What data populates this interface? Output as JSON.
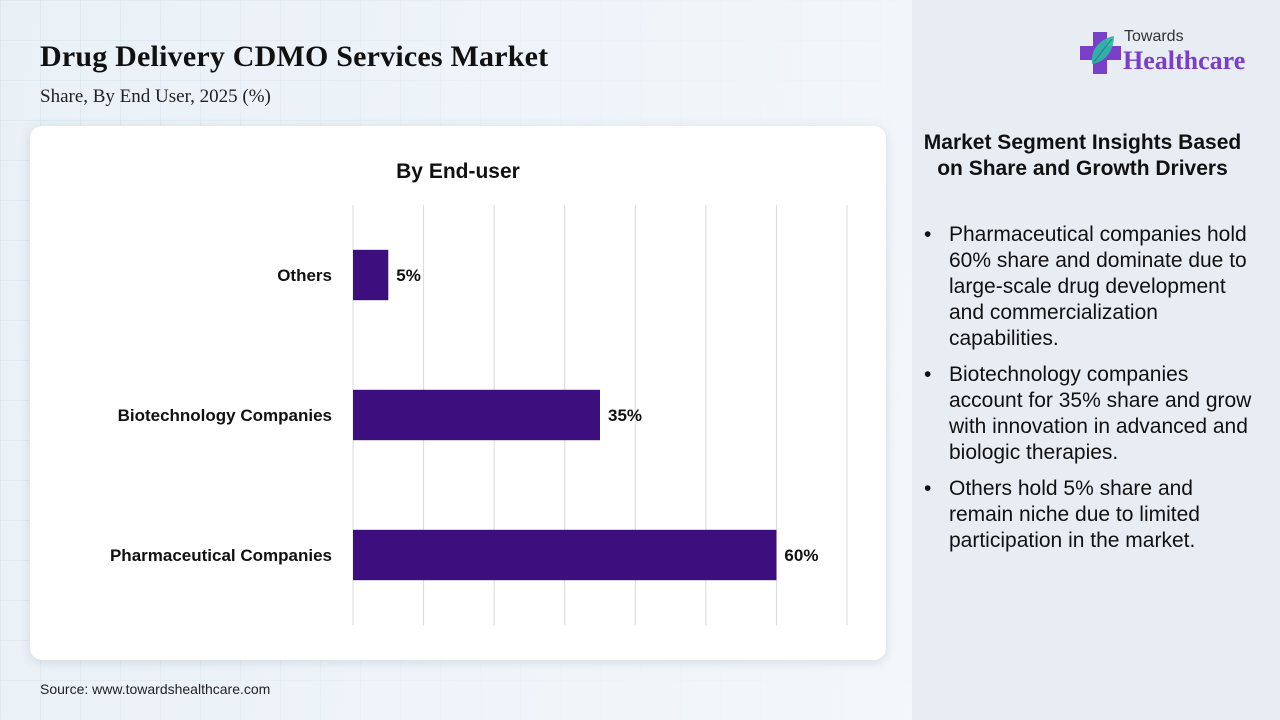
{
  "header": {
    "title": "Drug Delivery CDMO Services Market",
    "subtitle": "Share, By End User, 2025 (%)"
  },
  "logo": {
    "line1": "Towards",
    "line2": "Healthcare",
    "icon": "plus-leaf-icon",
    "colors": {
      "plus": "#7a3fc8",
      "leaf": "#2fb7a6"
    }
  },
  "chart_data": {
    "type": "bar",
    "orientation": "horizontal",
    "title": "By End-user",
    "categories": [
      "Others",
      "Biotechnology Companies",
      "Pharmaceutical Companies"
    ],
    "values": [
      5,
      35,
      60
    ],
    "data_labels": [
      "5%",
      "35%",
      "60%"
    ],
    "xlabel": "",
    "ylabel": "",
    "xlim": [
      0,
      70
    ],
    "grid": true,
    "x_tick_labels_visible": false,
    "bar_color": "#3d0f7e"
  },
  "insights": {
    "title": "Market Segment Insights Based on Share and Growth Drivers",
    "bullet": "•",
    "items": [
      "Pharmaceutical companies hold 60% share and dominate due to large-scale drug development and commercialization capabilities.",
      "Biotechnology companies account for 35% share and grow with innovation in advanced and biologic therapies.",
      "Others hold 5% share and remain niche due to limited participation in the market."
    ]
  },
  "footer": {
    "source": "Source: www.towardshealthcare.com"
  }
}
